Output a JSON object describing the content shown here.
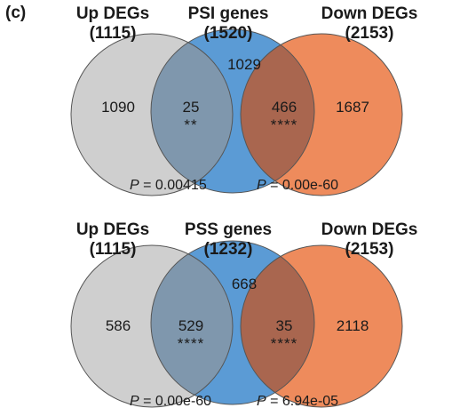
{
  "panel_label": "(c)",
  "diagrams": [
    {
      "left_set": {
        "name": "Up DEGs",
        "count": "(1115)"
      },
      "middle_set": {
        "name": "PSI genes",
        "count": "(1520)"
      },
      "right_set": {
        "name": "Down DEGs",
        "count": "(2153)"
      },
      "regions": {
        "left_only": "1090",
        "left_middle": "25",
        "left_middle_stars": "**",
        "middle_only": "1029",
        "middle_right": "466",
        "middle_right_stars": "****",
        "right_only": "1687"
      },
      "p_left": {
        "symbol": "P",
        "value": " = 0.00415"
      },
      "p_right": {
        "symbol": "P",
        "value": " = 0.00e-60"
      }
    },
    {
      "left_set": {
        "name": "Up DEGs",
        "count": "(1115)"
      },
      "middle_set": {
        "name": "PSS genes",
        "count": "(1232)"
      },
      "right_set": {
        "name": "Down DEGs",
        "count": "(2153)"
      },
      "regions": {
        "left_only": "586",
        "left_middle": "529",
        "left_middle_stars": "****",
        "middle_only": "668",
        "middle_right": "35",
        "middle_right_stars": "****",
        "right_only": "2118"
      },
      "p_left": {
        "symbol": "P",
        "value": " = 0.00e-60"
      },
      "p_right": {
        "symbol": "P",
        "value": " = 6.94e-05"
      }
    }
  ],
  "colors": {
    "left_circle": "#cfcfcf",
    "middle_circle": "#5b9bd5",
    "right_circle": "#ee8b5c",
    "left_middle_overlap": "#7f97ad",
    "middle_right_overlap": "#a9664f",
    "stroke": "#555555"
  }
}
